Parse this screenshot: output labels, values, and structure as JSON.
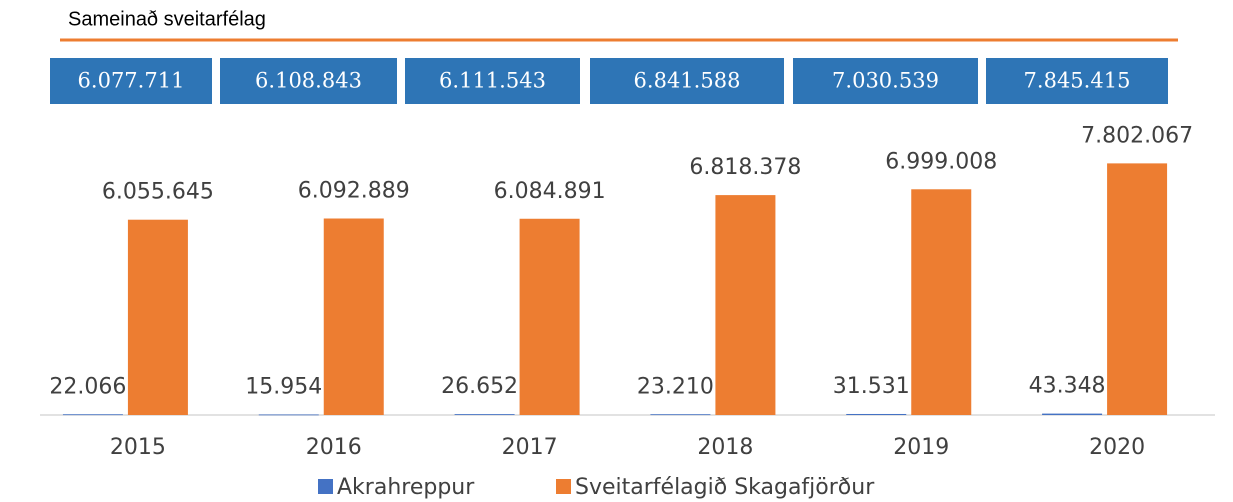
{
  "chart_data": {
    "type": "bar",
    "title": "Sameinað sveitarfélag",
    "totals": [
      "6.077.711",
      "6.108.843",
      "6.111.543",
      "6.841.588",
      "7.030.539",
      "7.845.415"
    ],
    "categories": [
      "2015",
      "2016",
      "2017",
      "2018",
      "2019",
      "2020"
    ],
    "series": [
      {
        "name": "Akrahreppur",
        "color": "#4472c4",
        "values": [
          22066,
          15954,
          26652,
          23210,
          31531,
          43348
        ],
        "value_labels": [
          "22.066",
          "15.954",
          "26.652",
          "23.210",
          "31.531",
          "43.348"
        ]
      },
      {
        "name": "Sveitarfélagið Skagafjörður",
        "color": "#ed7d31",
        "values": [
          6055645,
          6092889,
          6084891,
          6818378,
          6999008,
          7802067
        ],
        "value_labels": [
          "6.055.645",
          "6.092.889",
          "6.084.891",
          "6.818.378",
          "6.999.008",
          "7.802.067"
        ]
      }
    ],
    "ylim": [
      0,
      8000000
    ]
  }
}
